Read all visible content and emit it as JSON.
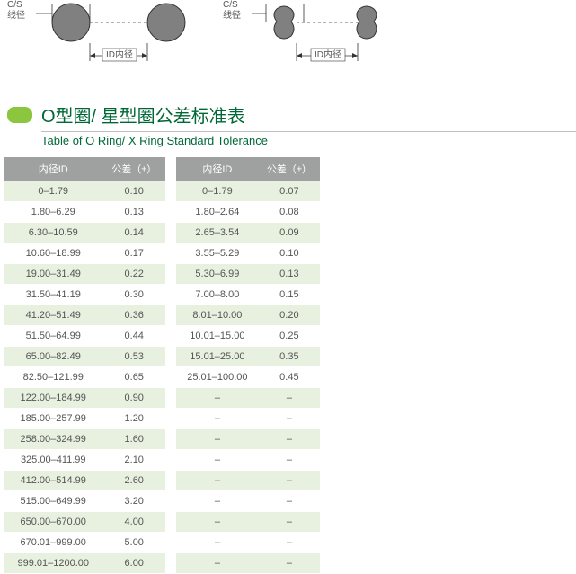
{
  "diagrams": {
    "cs_label": "C/S",
    "cs_sub": "线径",
    "id_label": "ID内径"
  },
  "title": {
    "cn": "O型圈/ 星型圈公差标准表",
    "en": "Table of O Ring/ X Ring Standard Tolerance"
  },
  "table_left": {
    "headers": {
      "id": "内径ID",
      "tol": "公差（±）"
    },
    "rows": [
      {
        "id": "0–1.79",
        "tol": "0.10"
      },
      {
        "id": "1.80–6.29",
        "tol": "0.13"
      },
      {
        "id": "6.30–10.59",
        "tol": "0.14"
      },
      {
        "id": "10.60–18.99",
        "tol": "0.17"
      },
      {
        "id": "19.00–31.49",
        "tol": "0.22"
      },
      {
        "id": "31.50–41.19",
        "tol": "0.30"
      },
      {
        "id": "41.20–51.49",
        "tol": "0.36"
      },
      {
        "id": "51.50–64.99",
        "tol": "0.44"
      },
      {
        "id": "65.00–82.49",
        "tol": "0.53"
      },
      {
        "id": "82.50–121.99",
        "tol": "0.65"
      },
      {
        "id": "122.00–184.99",
        "tol": "0.90"
      },
      {
        "id": "185.00–257.99",
        "tol": "1.20"
      },
      {
        "id": "258.00–324.99",
        "tol": "1.60"
      },
      {
        "id": "325.00–411.99",
        "tol": "2.10"
      },
      {
        "id": "412.00–514.99",
        "tol": "2.60"
      },
      {
        "id": "515.00–649.99",
        "tol": "3.20"
      },
      {
        "id": "650.00–670.00",
        "tol": "4.00"
      },
      {
        "id": "670.01–999.00",
        "tol": "5.00"
      },
      {
        "id": "999.01–1200.00",
        "tol": "6.00"
      }
    ]
  },
  "table_right": {
    "headers": {
      "id": "内径ID",
      "tol": "公差（±）"
    },
    "rows": [
      {
        "id": "0–1.79",
        "tol": "0.07"
      },
      {
        "id": "1.80–2.64",
        "tol": "0.08"
      },
      {
        "id": "2.65–3.54",
        "tol": "0.09"
      },
      {
        "id": "3.55–5.29",
        "tol": "0.10"
      },
      {
        "id": "5.30–6.99",
        "tol": "0.13"
      },
      {
        "id": "7.00–8.00",
        "tol": "0.15"
      },
      {
        "id": "8.01–10.00",
        "tol": "0.20"
      },
      {
        "id": "10.01–15.00",
        "tol": "0.25"
      },
      {
        "id": "15.01–25.00",
        "tol": "0.35"
      },
      {
        "id": "25.01–100.00",
        "tol": "0.45"
      },
      {
        "id": "–",
        "tol": "–"
      },
      {
        "id": "–",
        "tol": "–"
      },
      {
        "id": "–",
        "tol": "–"
      },
      {
        "id": "–",
        "tol": "–"
      },
      {
        "id": "–",
        "tol": "–"
      },
      {
        "id": "–",
        "tol": "–"
      },
      {
        "id": "–",
        "tol": "–"
      },
      {
        "id": "–",
        "tol": "–"
      },
      {
        "id": "–",
        "tol": "–"
      }
    ]
  },
  "style": {
    "header_bg": "#9fa0a0",
    "row_odd_bg": "#e8f0e0",
    "row_even_bg": "#ffffff",
    "accent": "#8cc63f",
    "title_color": "#006837"
  }
}
